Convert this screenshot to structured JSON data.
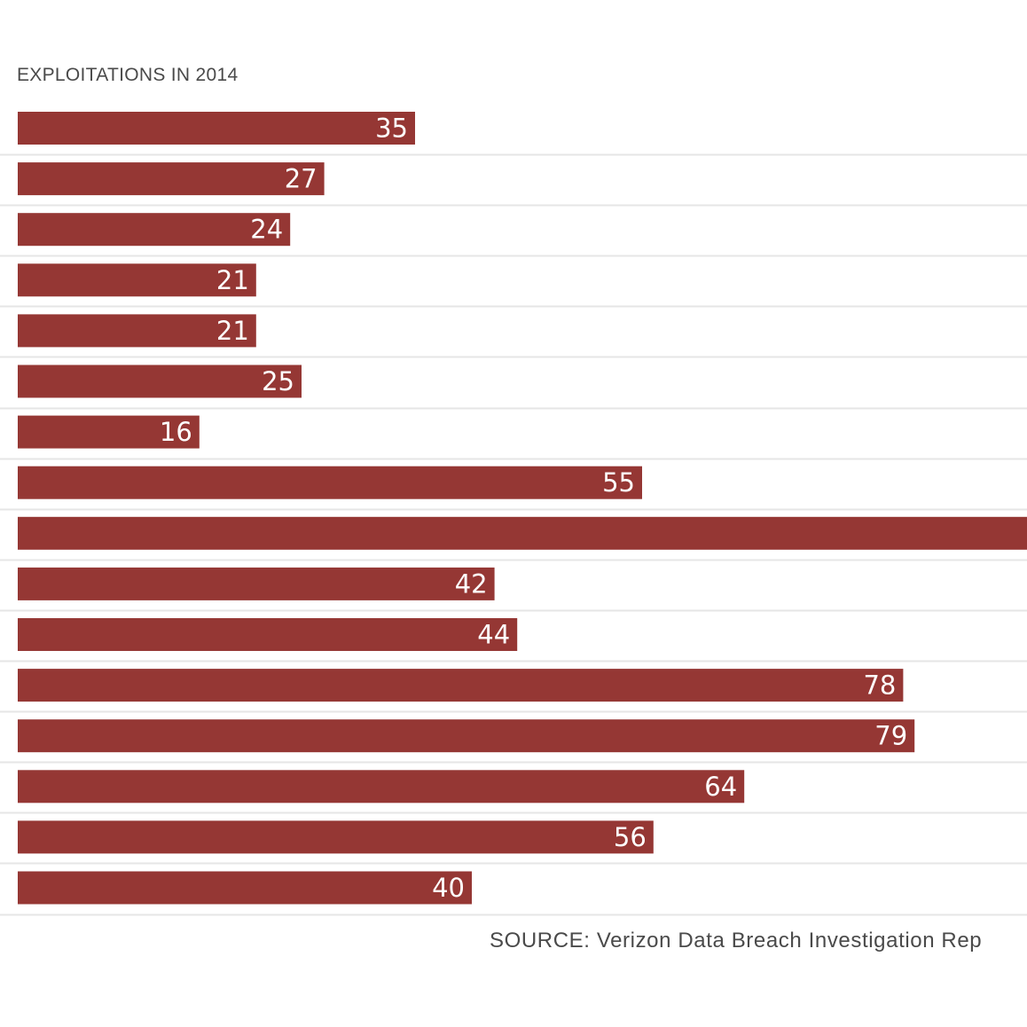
{
  "chart_data": {
    "type": "bar",
    "orientation": "horizontal",
    "title": "EXPLOITATIONS IN 2014",
    "source": "SOURCE: Verizon Data Breach Investigation Rep",
    "values": [
      35,
      27,
      24,
      21,
      21,
      25,
      16,
      55,
      null,
      42,
      44,
      78,
      79,
      64,
      56,
      40
    ],
    "data_labels": [
      "35",
      "27",
      "24",
      "21",
      "21",
      "25",
      "16",
      "55",
      "",
      "42",
      "44",
      "78",
      "79",
      "64",
      "56",
      "40"
    ],
    "xlim": [
      0,
      88
    ],
    "grid": true,
    "bar_color": "#953734",
    "grid_color": "#e6e6e6"
  }
}
